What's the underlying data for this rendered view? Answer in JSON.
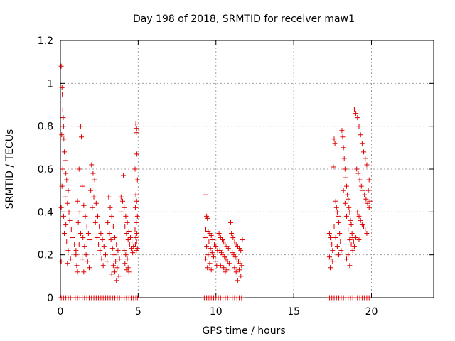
{
  "chart_data": {
    "type": "scatter",
    "title": "Day 198 of 2018, SRMTID for receiver maw1",
    "xlabel": "GPS time / hours",
    "ylabel": "SRMTID / TECUs",
    "xlim": [
      0,
      24
    ],
    "ylim": [
      0,
      1.2
    ],
    "x_ticks": [
      0,
      5,
      10,
      15,
      20
    ],
    "x_tick_labels": [
      "0",
      "5",
      "10",
      "15",
      "20"
    ],
    "y_ticks": [
      0,
      0.2,
      0.4,
      0.6,
      0.8,
      1,
      1.2
    ],
    "y_tick_labels": [
      "0",
      "0.2",
      "0.4",
      "0.6",
      "0.8",
      "1",
      "1.2"
    ],
    "grid": true,
    "marker": "+",
    "series": [
      {
        "name": "maw1",
        "color": "#dd0000",
        "points": [
          [
            0.05,
            1.08
          ],
          [
            0.1,
            0.98
          ],
          [
            0.12,
            0.95
          ],
          [
            0.15,
            0.88
          ],
          [
            0.18,
            0.84
          ],
          [
            0.2,
            0.8
          ],
          [
            0.08,
            0.76
          ],
          [
            0.22,
            0.74
          ],
          [
            0.25,
            0.68
          ],
          [
            0.3,
            0.64
          ],
          [
            0.15,
            0.6
          ],
          [
            0.35,
            0.58
          ],
          [
            0.4,
            0.55
          ],
          [
            0.1,
            0.52
          ],
          [
            0.5,
            0.5
          ],
          [
            0.3,
            0.47
          ],
          [
            0.45,
            0.44
          ],
          [
            0.05,
            0.42
          ],
          [
            0.55,
            0.4
          ],
          [
            0.2,
            0.38
          ],
          [
            0.6,
            0.36
          ],
          [
            0.35,
            0.34
          ],
          [
            0.7,
            0.32
          ],
          [
            0.25,
            0.3
          ],
          [
            0.8,
            0.28
          ],
          [
            0.4,
            0.26
          ],
          [
            0.9,
            0.25
          ],
          [
            0.5,
            0.22
          ],
          [
            1.0,
            0.2
          ],
          [
            0.65,
            0.18
          ],
          [
            0.05,
            0.17
          ],
          [
            0.45,
            0.16
          ],
          [
            1.3,
            0.8
          ],
          [
            1.35,
            0.75
          ],
          [
            1.2,
            0.6
          ],
          [
            1.4,
            0.52
          ],
          [
            1.1,
            0.45
          ],
          [
            1.5,
            0.43
          ],
          [
            1.25,
            0.4
          ],
          [
            1.6,
            0.38
          ],
          [
            1.15,
            0.35
          ],
          [
            1.7,
            0.33
          ],
          [
            1.3,
            0.3
          ],
          [
            1.8,
            0.3
          ],
          [
            1.45,
            0.28
          ],
          [
            1.9,
            0.27
          ],
          [
            1.2,
            0.25
          ],
          [
            1.55,
            0.24
          ],
          [
            1.0,
            0.22
          ],
          [
            1.65,
            0.2
          ],
          [
            1.4,
            0.18
          ],
          [
            1.75,
            0.17
          ],
          [
            1.05,
            0.15
          ],
          [
            1.85,
            0.14
          ],
          [
            1.5,
            0.12
          ],
          [
            1.1,
            0.12
          ],
          [
            2.0,
            0.62
          ],
          [
            2.1,
            0.58
          ],
          [
            2.2,
            0.55
          ],
          [
            1.95,
            0.5
          ],
          [
            2.15,
            0.47
          ],
          [
            2.3,
            0.44
          ],
          [
            2.05,
            0.42
          ],
          [
            2.4,
            0.38
          ],
          [
            2.25,
            0.35
          ],
          [
            2.5,
            0.33
          ],
          [
            2.6,
            0.3
          ],
          [
            2.35,
            0.28
          ],
          [
            2.7,
            0.27
          ],
          [
            2.45,
            0.25
          ],
          [
            2.8,
            0.24
          ],
          [
            2.55,
            0.22
          ],
          [
            2.9,
            0.2
          ],
          [
            2.65,
            0.18
          ],
          [
            3.0,
            0.17
          ],
          [
            2.75,
            0.15
          ],
          [
            3.1,
            0.47
          ],
          [
            3.2,
            0.42
          ],
          [
            3.3,
            0.38
          ],
          [
            3.05,
            0.35
          ],
          [
            3.4,
            0.33
          ],
          [
            3.15,
            0.3
          ],
          [
            3.5,
            0.28
          ],
          [
            3.25,
            0.27
          ],
          [
            3.6,
            0.25
          ],
          [
            3.35,
            0.23
          ],
          [
            3.7,
            0.22
          ],
          [
            3.45,
            0.2
          ],
          [
            3.8,
            0.18
          ],
          [
            3.55,
            0.17
          ],
          [
            3.4,
            0.15
          ],
          [
            3.65,
            0.14
          ],
          [
            3.5,
            0.12
          ],
          [
            3.3,
            0.11
          ],
          [
            3.75,
            0.1
          ],
          [
            3.6,
            0.08
          ],
          [
            3.9,
            0.47
          ],
          [
            4.0,
            0.45
          ],
          [
            4.1,
            0.42
          ],
          [
            4.05,
            0.57
          ],
          [
            3.95,
            0.4
          ],
          [
            4.2,
            0.38
          ],
          [
            4.3,
            0.35
          ],
          [
            4.15,
            0.33
          ],
          [
            4.4,
            0.31
          ],
          [
            4.25,
            0.3
          ],
          [
            4.5,
            0.28
          ],
          [
            4.35,
            0.27
          ],
          [
            4.6,
            0.26
          ],
          [
            4.45,
            0.25
          ],
          [
            4.7,
            0.24
          ],
          [
            4.55,
            0.23
          ],
          [
            4.1,
            0.22
          ],
          [
            4.65,
            0.21
          ],
          [
            4.2,
            0.2
          ],
          [
            4.3,
            0.18
          ],
          [
            4.15,
            0.16
          ],
          [
            4.35,
            0.14
          ],
          [
            4.25,
            0.13
          ],
          [
            4.4,
            0.12
          ],
          [
            4.85,
            0.81
          ],
          [
            4.9,
            0.79
          ],
          [
            4.88,
            0.77
          ],
          [
            4.92,
            0.67
          ],
          [
            4.8,
            0.6
          ],
          [
            4.95,
            0.55
          ],
          [
            4.85,
            0.48
          ],
          [
            4.9,
            0.45
          ],
          [
            4.82,
            0.42
          ],
          [
            4.95,
            0.38
          ],
          [
            4.88,
            0.35
          ],
          [
            4.8,
            0.32
          ],
          [
            4.92,
            0.3
          ],
          [
            4.85,
            0.28
          ],
          [
            4.9,
            0.26
          ],
          [
            4.82,
            0.25
          ],
          [
            4.95,
            0.23
          ],
          [
            4.88,
            0.22
          ],
          [
            9.3,
            0.48
          ],
          [
            9.4,
            0.38
          ],
          [
            9.45,
            0.37
          ],
          [
            9.35,
            0.32
          ],
          [
            9.5,
            0.31
          ],
          [
            9.6,
            0.3
          ],
          [
            9.7,
            0.29
          ],
          [
            9.3,
            0.28
          ],
          [
            9.8,
            0.27
          ],
          [
            9.55,
            0.26
          ],
          [
            9.9,
            0.25
          ],
          [
            9.4,
            0.24
          ],
          [
            10.0,
            0.24
          ],
          [
            9.65,
            0.23
          ],
          [
            10.1,
            0.22
          ],
          [
            9.75,
            0.21
          ],
          [
            9.5,
            0.2
          ],
          [
            9.85,
            0.19
          ],
          [
            9.35,
            0.18
          ],
          [
            9.95,
            0.17
          ],
          [
            9.6,
            0.16
          ],
          [
            10.05,
            0.15
          ],
          [
            9.45,
            0.14
          ],
          [
            9.7,
            0.13
          ],
          [
            10.2,
            0.3
          ],
          [
            10.3,
            0.28
          ],
          [
            10.4,
            0.27
          ],
          [
            10.5,
            0.26
          ],
          [
            10.6,
            0.25
          ],
          [
            10.7,
            0.24
          ],
          [
            10.8,
            0.23
          ],
          [
            10.25,
            0.22
          ],
          [
            10.35,
            0.21
          ],
          [
            10.45,
            0.2
          ],
          [
            10.55,
            0.19
          ],
          [
            10.65,
            0.18
          ],
          [
            10.75,
            0.17
          ],
          [
            10.85,
            0.16
          ],
          [
            10.3,
            0.15
          ],
          [
            10.5,
            0.14
          ],
          [
            10.7,
            0.13
          ],
          [
            10.9,
            0.32
          ],
          [
            10.95,
            0.35
          ],
          [
            10.6,
            0.12
          ],
          [
            11.0,
            0.3
          ],
          [
            11.1,
            0.28
          ],
          [
            11.2,
            0.26
          ],
          [
            11.3,
            0.25
          ],
          [
            11.4,
            0.24
          ],
          [
            11.5,
            0.23
          ],
          [
            11.6,
            0.22
          ],
          [
            11.05,
            0.21
          ],
          [
            11.15,
            0.2
          ],
          [
            11.25,
            0.19
          ],
          [
            11.35,
            0.18
          ],
          [
            11.45,
            0.17
          ],
          [
            11.55,
            0.16
          ],
          [
            11.65,
            0.15
          ],
          [
            11.7,
            0.27
          ],
          [
            11.5,
            0.13
          ],
          [
            11.3,
            0.12
          ],
          [
            11.6,
            0.1
          ],
          [
            11.4,
            0.08
          ],
          [
            11.2,
            0.14
          ],
          [
            17.3,
            0.3
          ],
          [
            17.35,
            0.28
          ],
          [
            17.4,
            0.26
          ],
          [
            17.45,
            0.25
          ],
          [
            17.5,
            0.22
          ],
          [
            17.3,
            0.19
          ],
          [
            17.4,
            0.18
          ],
          [
            17.5,
            0.17
          ],
          [
            17.35,
            0.14
          ],
          [
            17.6,
            0.74
          ],
          [
            17.65,
            0.72
          ],
          [
            17.55,
            0.61
          ],
          [
            17.7,
            0.45
          ],
          [
            17.75,
            0.42
          ],
          [
            17.8,
            0.4
          ],
          [
            17.85,
            0.38
          ],
          [
            17.9,
            0.35
          ],
          [
            17.6,
            0.33
          ],
          [
            17.95,
            0.3
          ],
          [
            17.7,
            0.28
          ],
          [
            18.0,
            0.26
          ],
          [
            17.8,
            0.24
          ],
          [
            18.05,
            0.22
          ],
          [
            17.9,
            0.2
          ],
          [
            18.1,
            0.78
          ],
          [
            18.15,
            0.75
          ],
          [
            18.2,
            0.7
          ],
          [
            18.25,
            0.65
          ],
          [
            18.3,
            0.6
          ],
          [
            18.35,
            0.56
          ],
          [
            18.4,
            0.52
          ],
          [
            18.2,
            0.5
          ],
          [
            18.45,
            0.48
          ],
          [
            18.5,
            0.46
          ],
          [
            18.3,
            0.44
          ],
          [
            18.55,
            0.42
          ],
          [
            18.6,
            0.4
          ],
          [
            18.4,
            0.38
          ],
          [
            18.65,
            0.36
          ],
          [
            18.7,
            0.34
          ],
          [
            18.5,
            0.32
          ],
          [
            18.75,
            0.3
          ],
          [
            18.8,
            0.28
          ],
          [
            18.6,
            0.27
          ],
          [
            18.85,
            0.26
          ],
          [
            18.7,
            0.25
          ],
          [
            18.9,
            0.24
          ],
          [
            18.8,
            0.22
          ],
          [
            18.5,
            0.2
          ],
          [
            18.4,
            0.18
          ],
          [
            18.6,
            0.15
          ],
          [
            18.9,
            0.88
          ],
          [
            19.0,
            0.86
          ],
          [
            19.1,
            0.84
          ],
          [
            19.2,
            0.8
          ],
          [
            19.3,
            0.76
          ],
          [
            19.4,
            0.72
          ],
          [
            19.5,
            0.68
          ],
          [
            19.6,
            0.65
          ],
          [
            19.7,
            0.62
          ],
          [
            19.05,
            0.6
          ],
          [
            19.15,
            0.58
          ],
          [
            19.25,
            0.55
          ],
          [
            19.35,
            0.52
          ],
          [
            19.45,
            0.5
          ],
          [
            19.55,
            0.48
          ],
          [
            19.65,
            0.46
          ],
          [
            19.75,
            0.44
          ],
          [
            19.85,
            0.42
          ],
          [
            19.1,
            0.4
          ],
          [
            19.2,
            0.38
          ],
          [
            19.3,
            0.36
          ],
          [
            19.4,
            0.34
          ],
          [
            19.5,
            0.33
          ],
          [
            19.6,
            0.32
          ],
          [
            19.8,
            0.5
          ],
          [
            19.85,
            0.55
          ],
          [
            19.9,
            0.45
          ],
          [
            19.7,
            0.3
          ],
          [
            19.0,
            0.28
          ],
          [
            19.2,
            0.27
          ]
        ],
        "zero_hours": [
          0.05,
          0.2,
          0.35,
          0.5,
          0.65,
          0.8,
          0.95,
          1.1,
          1.25,
          1.4,
          1.55,
          1.7,
          1.85,
          2.0,
          2.15,
          2.3,
          2.45,
          2.6,
          2.75,
          2.9,
          3.05,
          3.2,
          3.35,
          3.5,
          3.65,
          3.8,
          3.95,
          4.1,
          4.25,
          4.4,
          4.55,
          4.7,
          4.85,
          4.95,
          9.25,
          9.4,
          9.55,
          9.7,
          9.85,
          10.0,
          10.15,
          10.3,
          10.45,
          10.6,
          10.75,
          10.9,
          11.05,
          11.2,
          11.35,
          11.5,
          11.65,
          17.3,
          17.45,
          17.6,
          17.75,
          17.9,
          18.05,
          18.2,
          18.35,
          18.5,
          18.65,
          18.8,
          18.95,
          19.1,
          19.25,
          19.4,
          19.55,
          19.7,
          19.85
        ]
      }
    ]
  }
}
